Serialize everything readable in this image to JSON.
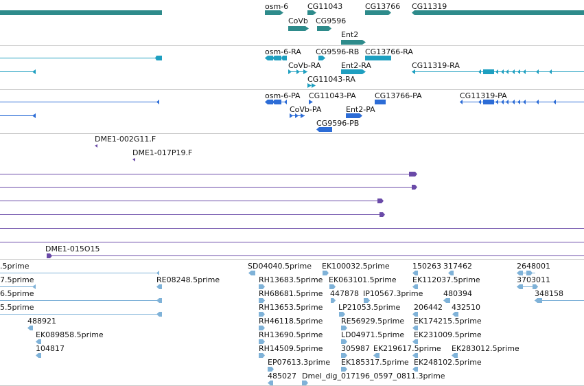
{
  "tracks": {
    "genes": {
      "color": "#2e8b8b",
      "features": [
        {
          "label": "osm-6"
        },
        {
          "label": "CG11043"
        },
        {
          "label": "CG13766"
        },
        {
          "label": "CG11319"
        },
        {
          "label": "CoVb"
        },
        {
          "label": "CG9596"
        },
        {
          "label": "Ent2"
        },
        {
          "label": ""
        }
      ]
    },
    "transcripts": {
      "color": "#1e9fc0",
      "features": [
        {
          "label": ""
        },
        {
          "label": "osm-6-RA"
        },
        {
          "label": "CG9596-RB"
        },
        {
          "label": "CG13766-RA"
        },
        {
          "label": "CoVb-RA"
        },
        {
          "label": "Ent2-RA"
        },
        {
          "label": "CG11319-RA"
        },
        {
          "label": ""
        },
        {
          "label": "CG11043-RA"
        }
      ]
    },
    "proteins": {
      "color": "#2c6cd6",
      "features": [
        {
          "label": ""
        },
        {
          "label": "osm-6-PA"
        },
        {
          "label": "CG11043-PA"
        },
        {
          "label": "CG13766-PA"
        },
        {
          "label": "CG11319-PA"
        },
        {
          "label": "CoVb-PA"
        },
        {
          "label": "Ent2-PA"
        },
        {
          "label": ""
        },
        {
          "label": "CG9596-PB"
        }
      ]
    },
    "bac_ends": {
      "color": "#6a4aa8",
      "features": [
        {
          "label": "DME1-002G11.F"
        },
        {
          "label": "DME1-017P19.F"
        },
        {
          "label": ""
        },
        {
          "label": ""
        },
        {
          "label": ""
        },
        {
          "label": ""
        },
        {
          "label": ""
        },
        {
          "label": ""
        },
        {
          "label": "DME1-015O15"
        }
      ]
    },
    "ests": {
      "color": "#7fb2d8",
      "features": [
        {
          "label": ".5prime"
        },
        {
          "label": "7.5prime"
        },
        {
          "label": "RE08248.5prime"
        },
        {
          "label": "6.5prime"
        },
        {
          "label": "5.5prime"
        },
        {
          "label": "488921"
        },
        {
          "label": "EK089858.5prime"
        },
        {
          "label": "104817"
        },
        {
          "label": "SD04040.5prime"
        },
        {
          "label": "EK100032.5prime"
        },
        {
          "label": "150263"
        },
        {
          "label": "317462"
        },
        {
          "label": "2648001"
        },
        {
          "label": "RH13683.5prime"
        },
        {
          "label": "EK063101.5prime"
        },
        {
          "label": "EK112037.5prime"
        },
        {
          "label": "3703011"
        },
        {
          "label": "RH68681.5prime"
        },
        {
          "label": "447878"
        },
        {
          "label": "IP10567.3prime"
        },
        {
          "label": "480394"
        },
        {
          "label": "348158"
        },
        {
          "label": "RH13653.5prime"
        },
        {
          "label": "LP21053.5prime"
        },
        {
          "label": "206442"
        },
        {
          "label": "432510"
        },
        {
          "label": "RH46118.5prime"
        },
        {
          "label": "RE56929.5prime"
        },
        {
          "label": "EK174215.5prime"
        },
        {
          "label": "RH13690.5prime"
        },
        {
          "label": "LD04971.5prime"
        },
        {
          "label": "EK231009.5prime"
        },
        {
          "label": "RH14509.5prime"
        },
        {
          "label": "305987"
        },
        {
          "label": "EK219617.5prime"
        },
        {
          "label": "EK283012.5prime"
        },
        {
          "label": "EP07613.3prime"
        },
        {
          "label": "EK185317.5prime"
        },
        {
          "label": "EK248102.5prime"
        },
        {
          "label": "485027"
        },
        {
          "label": "Dmel_dig_017196_0597_0811.3prime"
        }
      ]
    }
  }
}
